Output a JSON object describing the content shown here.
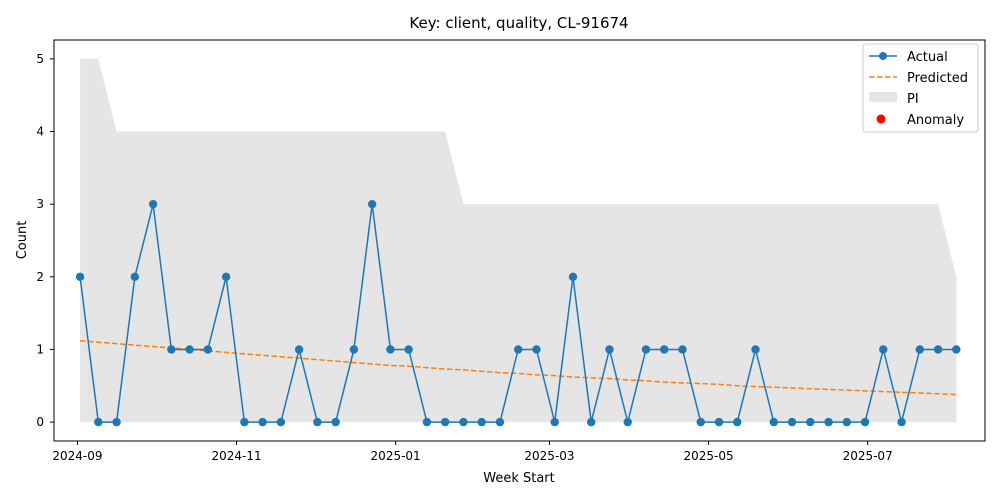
{
  "chart_data": {
    "type": "line",
    "title": "Key: client, quality, CL-91674",
    "xlabel": "Week Start",
    "ylabel": "Count",
    "x_tick_labels": [
      "2024-09",
      "2024-11",
      "2025-01",
      "2025-03",
      "2025-05",
      "2025-07"
    ],
    "x_tick_dates": [
      "2024-09-01",
      "2024-11-01",
      "2025-01-01",
      "2025-03-01",
      "2025-05-01",
      "2025-07-01"
    ],
    "y_ticks": [
      0,
      1,
      2,
      3,
      4,
      5
    ],
    "ylim": [
      -0.26,
      5.26
    ],
    "xlim": [
      "2024-08-23",
      "2025-08-15"
    ],
    "legend_position": "top-right",
    "grid": false,
    "x": [
      "2024-09-02",
      "2024-09-09",
      "2024-09-16",
      "2024-09-23",
      "2024-09-30",
      "2024-10-07",
      "2024-10-14",
      "2024-10-21",
      "2024-10-28",
      "2024-11-04",
      "2024-11-11",
      "2024-11-18",
      "2024-11-25",
      "2024-12-02",
      "2024-12-09",
      "2024-12-16",
      "2024-12-23",
      "2024-12-30",
      "2025-01-06",
      "2025-01-13",
      "2025-01-20",
      "2025-01-27",
      "2025-02-03",
      "2025-02-10",
      "2025-02-17",
      "2025-02-24",
      "2025-03-03",
      "2025-03-10",
      "2025-03-17",
      "2025-03-24",
      "2025-03-31",
      "2025-04-07",
      "2025-04-14",
      "2025-04-21",
      "2025-04-28",
      "2025-05-05",
      "2025-05-12",
      "2025-05-19",
      "2025-05-26",
      "2025-06-02",
      "2025-06-09",
      "2025-06-16",
      "2025-06-23",
      "2025-06-30",
      "2025-07-07",
      "2025-07-14",
      "2025-07-21",
      "2025-07-28",
      "2025-08-04"
    ],
    "series": [
      {
        "name": "Actual",
        "color": "#1f77b4",
        "style": "line-with-markers",
        "values": [
          2,
          0,
          0,
          2,
          3,
          1,
          1,
          1,
          2,
          0,
          0,
          0,
          1,
          0,
          0,
          1,
          3,
          1,
          1,
          0,
          0,
          0,
          0,
          0,
          1,
          1,
          0,
          2,
          0,
          1,
          0,
          1,
          1,
          1,
          0,
          0,
          0,
          1,
          0,
          0,
          0,
          0,
          0,
          0,
          1,
          0,
          1,
          1,
          1
        ]
      },
      {
        "name": "Predicted",
        "color": "#ff7f0e",
        "style": "dashed",
        "values": [
          1.12,
          1.1,
          1.08,
          1.06,
          1.04,
          1.02,
          1.0,
          0.98,
          0.96,
          0.94,
          0.92,
          0.9,
          0.88,
          0.86,
          0.84,
          0.82,
          0.8,
          0.78,
          0.77,
          0.75,
          0.73,
          0.72,
          0.7,
          0.68,
          0.67,
          0.65,
          0.64,
          0.62,
          0.61,
          0.6,
          0.58,
          0.57,
          0.55,
          0.54,
          0.53,
          0.52,
          0.5,
          0.49,
          0.48,
          0.47,
          0.46,
          0.45,
          0.44,
          0.43,
          0.42,
          0.41,
          0.4,
          0.39,
          0.38
        ]
      },
      {
        "name": "PI",
        "color": "#d3d3d3",
        "style": "band",
        "lower": [
          0,
          0,
          0,
          0,
          0,
          0,
          0,
          0,
          0,
          0,
          0,
          0,
          0,
          0,
          0,
          0,
          0,
          0,
          0,
          0,
          0,
          0,
          0,
          0,
          0,
          0,
          0,
          0,
          0,
          0,
          0,
          0,
          0,
          0,
          0,
          0,
          0,
          0,
          0,
          0,
          0,
          0,
          0,
          0,
          0,
          0,
          0,
          0,
          0
        ],
        "upper": [
          5,
          5,
          4,
          4,
          4,
          4,
          4,
          4,
          4,
          4,
          4,
          4,
          4,
          4,
          4,
          4,
          4,
          4,
          4,
          4,
          4,
          3,
          3,
          3,
          3,
          3,
          3,
          3,
          3,
          3,
          3,
          3,
          3,
          3,
          3,
          3,
          3,
          3,
          3,
          3,
          3,
          3,
          3,
          3,
          3,
          3,
          3,
          3,
          2
        ]
      },
      {
        "name": "Anomaly",
        "color": "#ff0000",
        "style": "scatter",
        "points": []
      }
    ]
  }
}
